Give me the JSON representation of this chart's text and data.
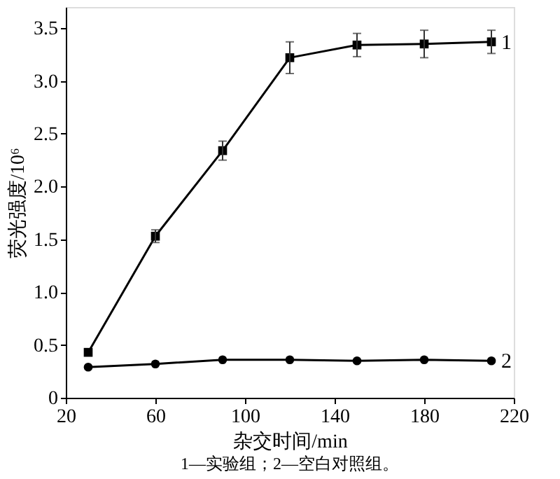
{
  "chart_data": {
    "type": "line",
    "xlabel": "杂交时间/min",
    "ylabel": "荧光强度/10⁶",
    "x": [
      30,
      60,
      90,
      120,
      150,
      180,
      210
    ],
    "series": [
      {
        "name": "1",
        "color": "#000000",
        "marker": "square",
        "values": [
          0.43,
          1.53,
          2.34,
          3.22,
          3.34,
          3.35,
          3.37
        ],
        "errors": [
          null,
          0.06,
          0.09,
          0.15,
          0.11,
          0.13,
          0.11
        ]
      },
      {
        "name": "2",
        "color": "#000000",
        "marker": "circle",
        "values": [
          0.29,
          0.32,
          0.36,
          0.36,
          0.35,
          0.36,
          0.35
        ]
      }
    ],
    "xlim": [
      20,
      220
    ],
    "xticks": [
      20,
      60,
      100,
      140,
      180,
      220
    ],
    "ylim": [
      0,
      3.7
    ],
    "yticks": [
      0,
      0.5,
      {
        "value": 1,
        "label": "1.0"
      },
      1.5,
      {
        "value": 2,
        "label": "2.0"
      },
      2.5,
      {
        "value": 3,
        "label": "3.0"
      },
      3.5
    ],
    "grid": false,
    "legend": false,
    "line_style": "solid",
    "annotations": [
      "1—实验组；2—空白对照组。"
    ]
  }
}
